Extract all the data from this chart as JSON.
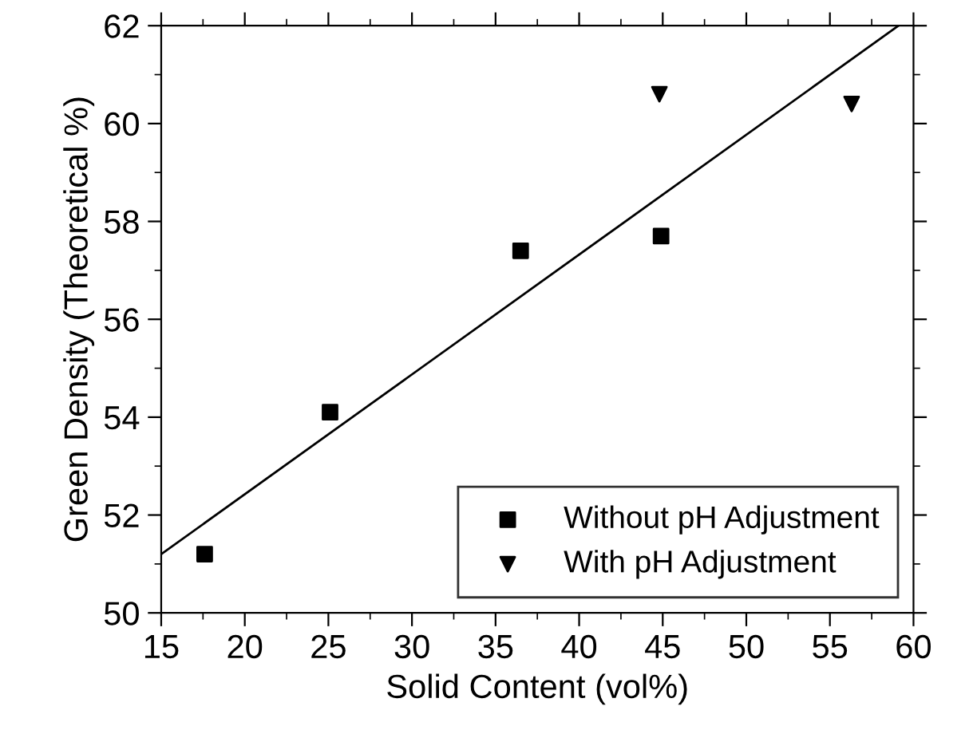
{
  "chart_data": {
    "type": "scatter",
    "xlabel": "Solid Content (vol%)",
    "ylabel": "Green Density (Theoretical %)",
    "xlim": [
      15,
      60
    ],
    "xticks": [
      15,
      20,
      25,
      30,
      35,
      40,
      45,
      50,
      55,
      60
    ],
    "ylim": [
      50,
      62
    ],
    "yticks": [
      50,
      52,
      54,
      56,
      58,
      60,
      62
    ],
    "grid": false,
    "legend": "bottom right",
    "series": [
      {
        "name": "Without pH Adjustment",
        "color": "#000000",
        "marker": "square",
        "x": [
          17.6,
          25.1,
          36.5,
          44.9
        ],
        "values": [
          51.2,
          54.1,
          57.4,
          57.7
        ]
      },
      {
        "name": "With pH Adjustment",
        "color": "#000000",
        "marker": "triangle",
        "x": [
          44.8,
          56.3
        ],
        "values": [
          60.6,
          60.4
        ]
      },
      {
        "type": "line",
        "color": "#000000",
        "marker": "none",
        "line_style": "solid",
        "x": [
          15,
          59.1
        ],
        "values": [
          51.2,
          62.0
        ]
      }
    ]
  }
}
